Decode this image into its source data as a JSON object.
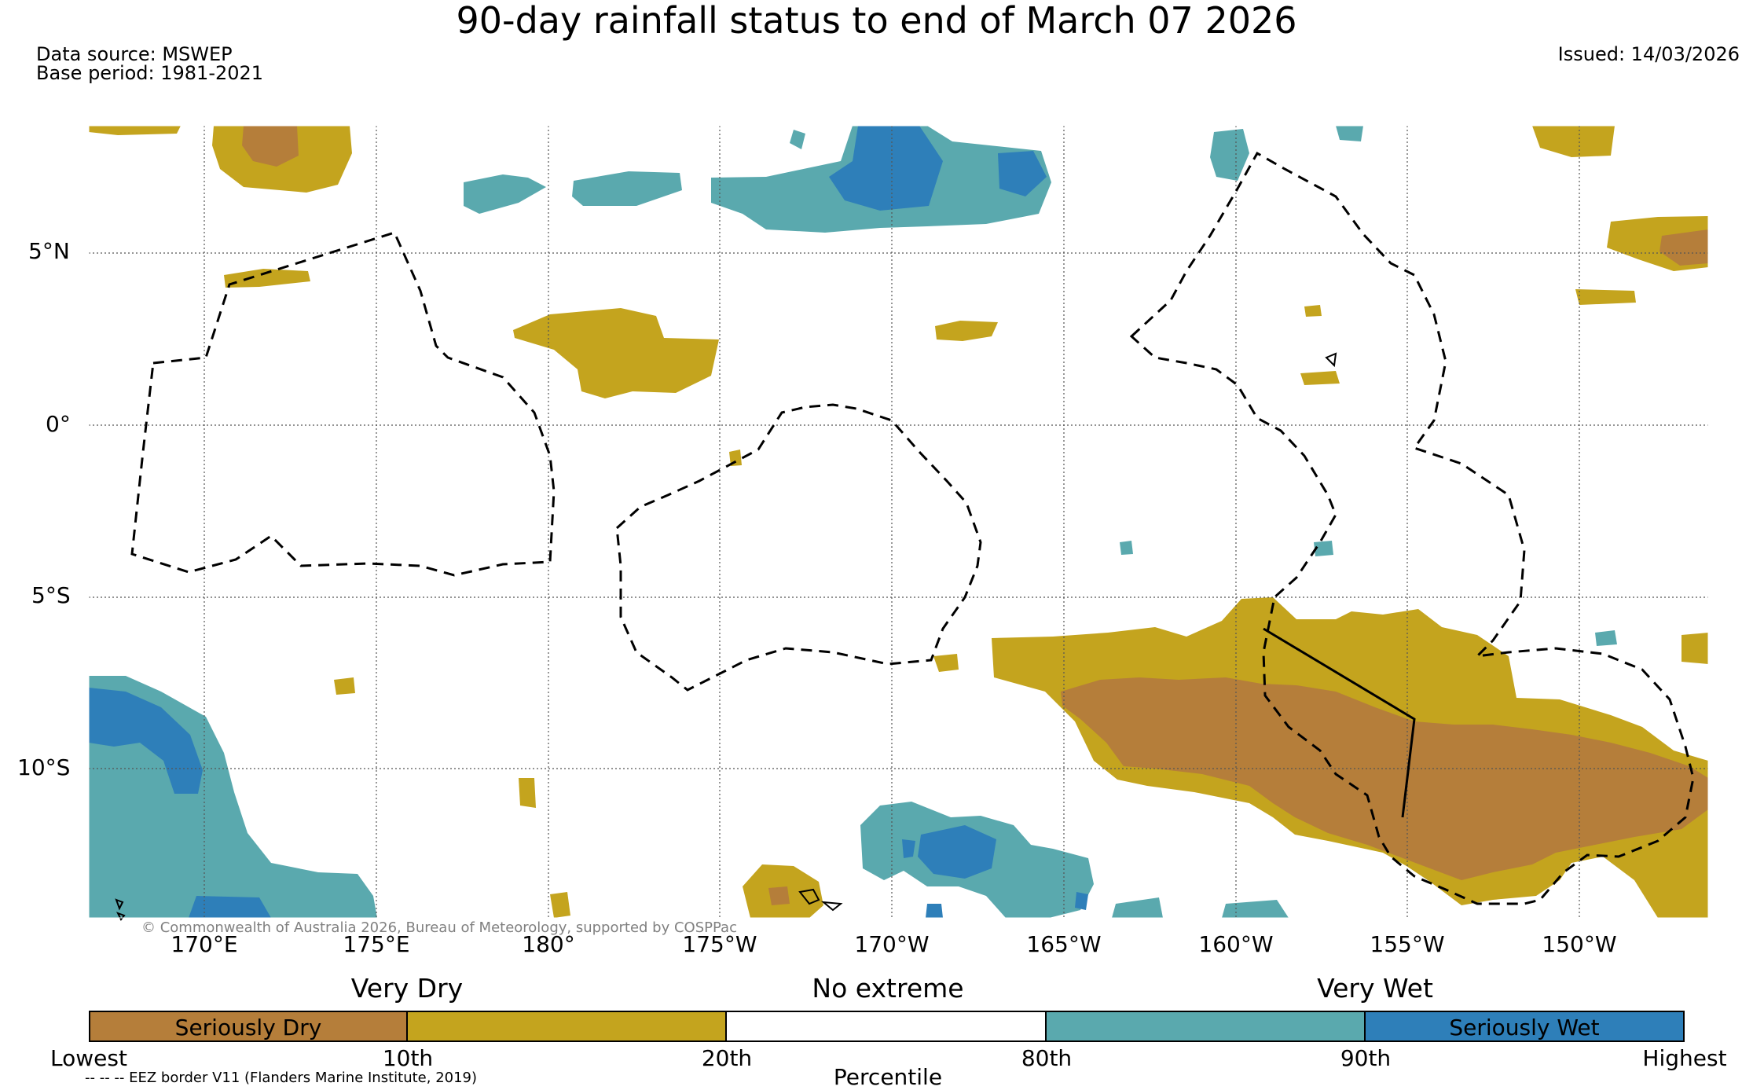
{
  "title": "90-day rainfall status to end of March 07 2026",
  "data_source": "Data source: MSWEP",
  "base_period": "Base period: 1981-2021",
  "issued": "Issued: 14/03/2026",
  "copyright": "© Commonwealth of Australia 2026, Bureau of Meteorology, supported by COSPPac",
  "eez_note": "-- -- -- EEZ border V11 (Flanders Marine Institute, 2019)",
  "map": {
    "lon_labels": [
      "170°E",
      "175°E",
      "180°",
      "175°W",
      "170°W",
      "165°W",
      "160°W",
      "155°W",
      "150°W"
    ],
    "lat_labels": [
      "5°N",
      "0°",
      "5°S",
      "10°S"
    ]
  },
  "legend": {
    "categories": [
      "Very Dry",
      "No extreme",
      "Very Wet"
    ],
    "segments": [
      {
        "label": "Seriously Dry",
        "color": "#b57e3a"
      },
      {
        "label": "",
        "color": "#c4a41e"
      },
      {
        "label": "",
        "color": "#ffffff"
      },
      {
        "label": "",
        "color": "#5aa9ae"
      },
      {
        "label": "Seriously Wet",
        "color": "#2e7fb9"
      }
    ],
    "percentiles": [
      "Lowest",
      "10th",
      "20th",
      "80th",
      "90th",
      "Highest"
    ],
    "axis_label": "Percentile"
  },
  "colors": {
    "seriously_dry": "#b57e3a",
    "very_dry": "#c4a41e",
    "no_extreme": "#ffffff",
    "very_wet": "#5aa9ae",
    "seriously_wet": "#2e7fb9"
  }
}
